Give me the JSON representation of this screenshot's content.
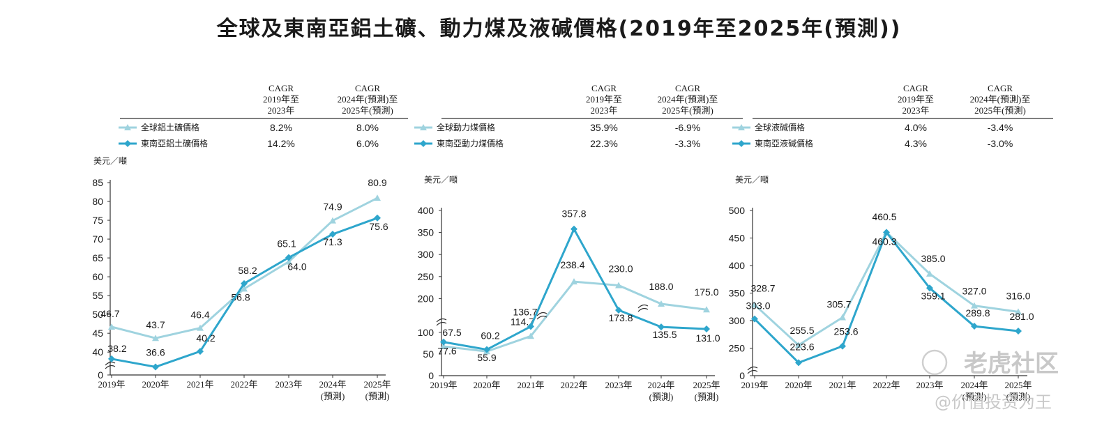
{
  "title": "全球及東南亞鋁土礦、動力煤及液碱價格(2019年至2025年(預測))",
  "colors": {
    "global": "#9fd3df",
    "sea": "#2ea6cc",
    "axis": "#333333"
  },
  "watermark": {
    "brand": "老虎社区",
    "handle": "@价值投资为王"
  },
  "chart_data": [
    {
      "type": "line",
      "ylabel": "美元／噸",
      "cagr_header_1": [
        "CAGR",
        "2019年至",
        "2023年"
      ],
      "cagr_header_2": [
        "CAGR",
        "2024年(預測)至",
        "2025年(預測)"
      ],
      "categories": [
        [
          "2019年"
        ],
        [
          "2020年"
        ],
        [
          "2021年"
        ],
        [
          "2022年"
        ],
        [
          "2023年"
        ],
        [
          "2024年",
          "(預測)"
        ],
        [
          "2025年",
          "(預測)"
        ]
      ],
      "yticks": [
        0,
        40,
        45,
        50,
        55,
        60,
        65,
        70,
        75,
        80,
        85
      ],
      "ylim": [
        35,
        85
      ],
      "axis_break": true,
      "series": [
        {
          "name": "全球鋁土礦價格",
          "role": "global",
          "marker": "triangle",
          "cagr_1": "8.2%",
          "cagr_2": "8.0%",
          "values": [
            46.7,
            43.7,
            46.4,
            56.8,
            64.0,
            74.9,
            80.9
          ],
          "labels": [
            "46.7",
            "43.7",
            "46.4",
            "56.8",
            "64.0",
            "74.9",
            "80.9"
          ]
        },
        {
          "name": "東南亞鋁土礦價格",
          "role": "sea",
          "marker": "diamond",
          "cagr_1": "14.2%",
          "cagr_2": "6.0%",
          "values": [
            38.2,
            36.6,
            40.2,
            58.2,
            65.1,
            71.3,
            75.6
          ],
          "labels": [
            "38.2",
            "36.6",
            "40.2",
            "58.2",
            "65.1",
            "71.3",
            "75.6"
          ]
        }
      ]
    },
    {
      "type": "line",
      "ylabel": "美元／噸",
      "cagr_header_1": [
        "CAGR",
        "2019年至",
        "2023年"
      ],
      "cagr_header_2": [
        "CAGR",
        "2024年(預測)至",
        "2025年(預測)"
      ],
      "categories": [
        [
          "2019年"
        ],
        [
          "2020年"
        ],
        [
          "2021年"
        ],
        [
          "2022年"
        ],
        [
          "2023年"
        ],
        [
          "2024年",
          "(預測)"
        ],
        [
          "2025年",
          "(預測)"
        ]
      ],
      "yticks": [
        0,
        50,
        100,
        200,
        250,
        300,
        350,
        400
      ],
      "ylim": [
        0,
        400
      ],
      "axis_break": true,
      "series": [
        {
          "name": "全球動力煤價格",
          "role": "global",
          "marker": "triangle",
          "cagr_1": "35.9%",
          "cagr_2": "-6.9%",
          "values": [
            67.5,
            55.9,
            114.7,
            238.4,
            230.0,
            188.0,
            175.0
          ],
          "labels": [
            "67.5",
            "55.9",
            "114.7",
            "238.4",
            "230.0",
            "188.0",
            "175.0"
          ]
        },
        {
          "name": "東南亞動力煤價格",
          "role": "sea",
          "marker": "diamond",
          "cagr_1": "22.3%",
          "cagr_2": "-3.3%",
          "values": [
            77.6,
            60.2,
            136.7,
            357.8,
            173.8,
            135.5,
            131.0
          ],
          "labels": [
            "77.6",
            "60.2",
            "136.7",
            "357.8",
            "173.8",
            "135.5",
            "131.0"
          ]
        }
      ]
    },
    {
      "type": "line",
      "ylabel": "美元／噸",
      "cagr_header_1": [
        "CAGR",
        "2019年至",
        "2023年"
      ],
      "cagr_header_2": [
        "CAGR",
        "2024年(預測)至",
        "2025年(預測)"
      ],
      "categories": [
        [
          "2019年"
        ],
        [
          "2020年"
        ],
        [
          "2021年"
        ],
        [
          "2022年"
        ],
        [
          "2023年"
        ],
        [
          "2024年",
          "(預測)"
        ],
        [
          "2025年",
          "(預測)"
        ]
      ],
      "yticks": [
        0,
        250,
        300,
        350,
        400,
        450,
        500
      ],
      "ylim": [
        200,
        500
      ],
      "axis_break": true,
      "series": [
        {
          "name": "全球液碱價格",
          "role": "global",
          "marker": "triangle",
          "cagr_1": "4.0%",
          "cagr_2": "-3.4%",
          "values": [
            328.7,
            255.5,
            305.7,
            460.5,
            385.0,
            327.0,
            316.0
          ],
          "labels": [
            "328.7",
            "255.5",
            "305.7",
            "460.5",
            "385.0",
            "327.0",
            "316.0"
          ]
        },
        {
          "name": "東南亞液碱價格",
          "role": "sea",
          "marker": "diamond",
          "cagr_1": "4.3%",
          "cagr_2": "-3.0%",
          "values": [
            303.0,
            223.6,
            253.6,
            460.3,
            359.1,
            289.8,
            281.0
          ],
          "labels": [
            "303.0",
            "223.6",
            "253.6",
            "460.3",
            "359.1",
            "289.8",
            "281.0"
          ]
        }
      ]
    }
  ]
}
